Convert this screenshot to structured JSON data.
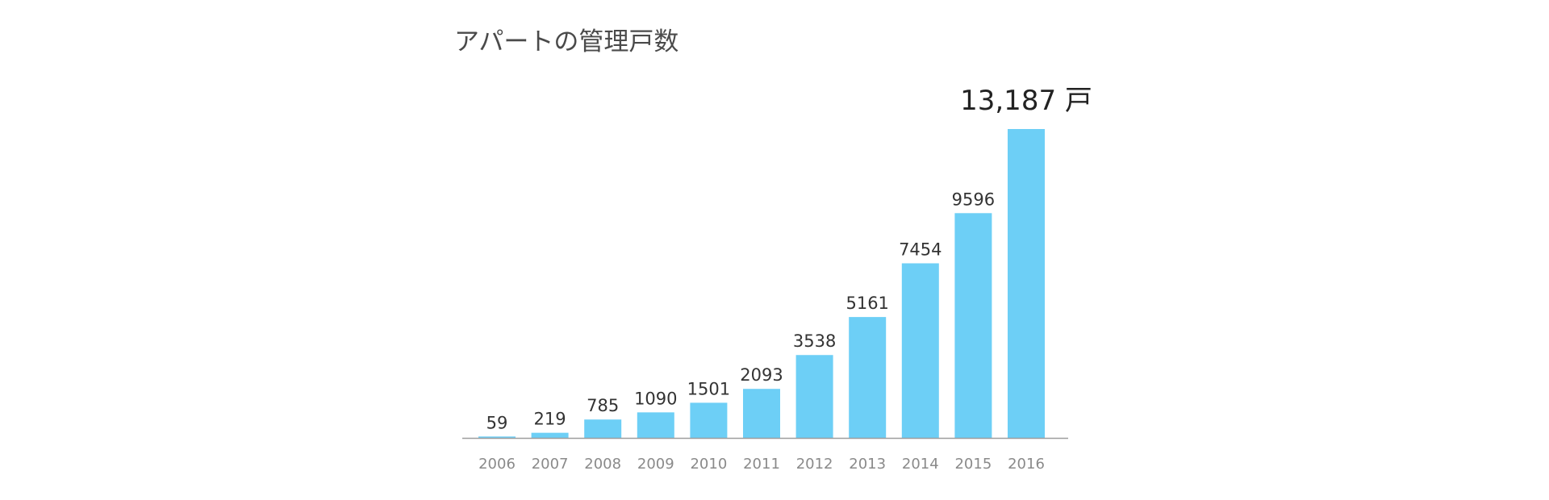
{
  "chart_data": {
    "type": "bar",
    "title": "アパートの管理戸数",
    "categories": [
      "2006",
      "2007",
      "2008",
      "2009",
      "2010",
      "2011",
      "2012",
      "2013",
      "2014",
      "2015",
      "2016"
    ],
    "values": [
      59,
      219,
      785,
      1090,
      1501,
      2093,
      3538,
      5161,
      7454,
      9596,
      13187
    ],
    "value_labels": [
      "59",
      "219",
      "785",
      "1090",
      "1501",
      "2093",
      "3538",
      "5161",
      "7454",
      "9596",
      "13,187 戸"
    ],
    "ylim": [
      0,
      13187
    ],
    "grid": false,
    "bar_color": "#6dcff6",
    "axis_color": "#9e9e9e"
  }
}
